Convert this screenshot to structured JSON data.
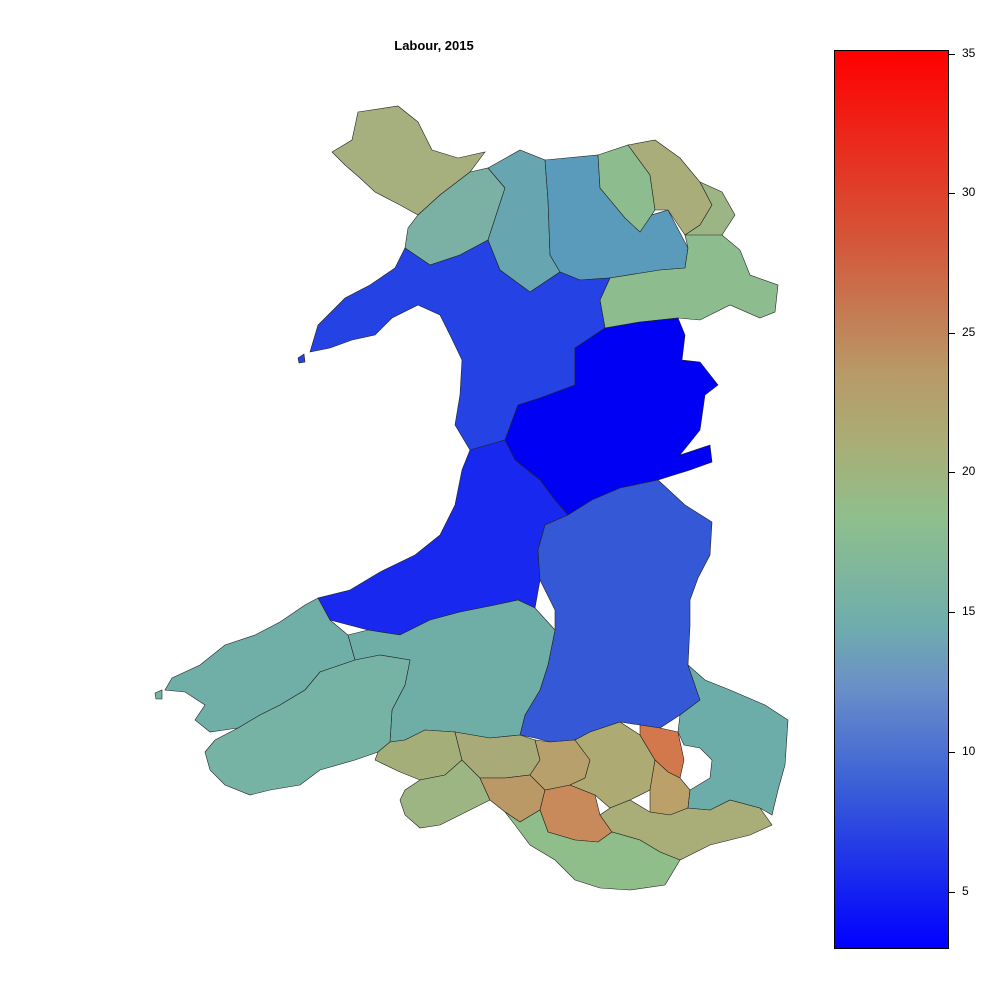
{
  "title": "Labour, 2015",
  "legend": {
    "min": 3,
    "max": 35,
    "low_color": "#0000ff",
    "high_color": "#ff0000",
    "ticks": [
      "5",
      "10",
      "15",
      "20",
      "25",
      "30",
      "35"
    ]
  },
  "regions": [
    {
      "name": "anglesey",
      "value": 22
    },
    {
      "name": "arfon",
      "value": 17
    },
    {
      "name": "aberconwy",
      "value": 15
    },
    {
      "name": "clwyd-west",
      "value": 13
    },
    {
      "name": "vale-of-clwyd",
      "value": 20
    },
    {
      "name": "delyn",
      "value": 23
    },
    {
      "name": "alyn-and-deeside",
      "value": 21
    },
    {
      "name": "wrexham",
      "value": 19
    },
    {
      "name": "dwyfor-meirionnydd",
      "value": 6
    },
    {
      "name": "montgomeryshire",
      "value": 3
    },
    {
      "name": "ceredigion",
      "value": 5
    },
    {
      "name": "brecon-and-radnorshire",
      "value": 8
    },
    {
      "name": "preseli-pembrokeshire",
      "value": 16
    },
    {
      "name": "carmarthen-east",
      "value": 15
    },
    {
      "name": "carmarthen-west",
      "value": 17
    },
    {
      "name": "llanelli",
      "value": 22
    },
    {
      "name": "gower",
      "value": 21
    },
    {
      "name": "neath",
      "value": 23
    },
    {
      "name": "aberavon",
      "value": 25
    },
    {
      "name": "ogmore",
      "value": 28
    },
    {
      "name": "rhondda",
      "value": 24
    },
    {
      "name": "cynon-valley",
      "value": 23
    },
    {
      "name": "merthyr-tydfil",
      "value": 29
    },
    {
      "name": "caerphilly",
      "value": 25
    },
    {
      "name": "cardiff",
      "value": 21
    },
    {
      "name": "monmouth",
      "value": 16
    },
    {
      "name": "vale-of-glamorgan",
      "value": 19
    }
  ]
}
